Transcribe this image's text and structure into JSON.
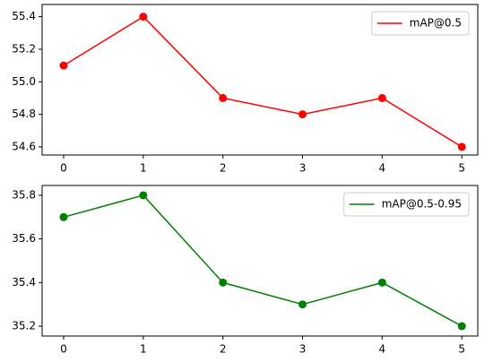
{
  "chart_data": [
    {
      "type": "line",
      "x": [
        0,
        1,
        2,
        3,
        4,
        5
      ],
      "series": [
        {
          "name": "mAP@0.5",
          "color": "#ff0000",
          "values": [
            55.1,
            55.4,
            54.9,
            54.8,
            54.9,
            54.6
          ]
        }
      ],
      "xlim": [
        -0.27,
        5.2
      ],
      "xticks": [
        0,
        1,
        2,
        3,
        4,
        5
      ],
      "ylim": [
        54.55,
        55.475
      ],
      "yticks": [
        54.6,
        54.8,
        {
          "value": 55,
          "label": "55.0"
        },
        55.2,
        55.4
      ],
      "legend": "upper right"
    },
    {
      "type": "line",
      "x": [
        0,
        1,
        2,
        3,
        4,
        5
      ],
      "series": [
        {
          "name": "mAP@0.5-0.95",
          "color": "#008000",
          "values": [
            35.7,
            35.8,
            35.4,
            35.3,
            35.4,
            35.2
          ]
        }
      ],
      "xlim": [
        -0.27,
        5.2
      ],
      "xticks": [
        0,
        1,
        2,
        3,
        4,
        5
      ],
      "ylim": [
        35.155,
        35.845
      ],
      "yticks": [
        35.2,
        35.4,
        35.6,
        35.8
      ],
      "legend": "upper right"
    }
  ]
}
